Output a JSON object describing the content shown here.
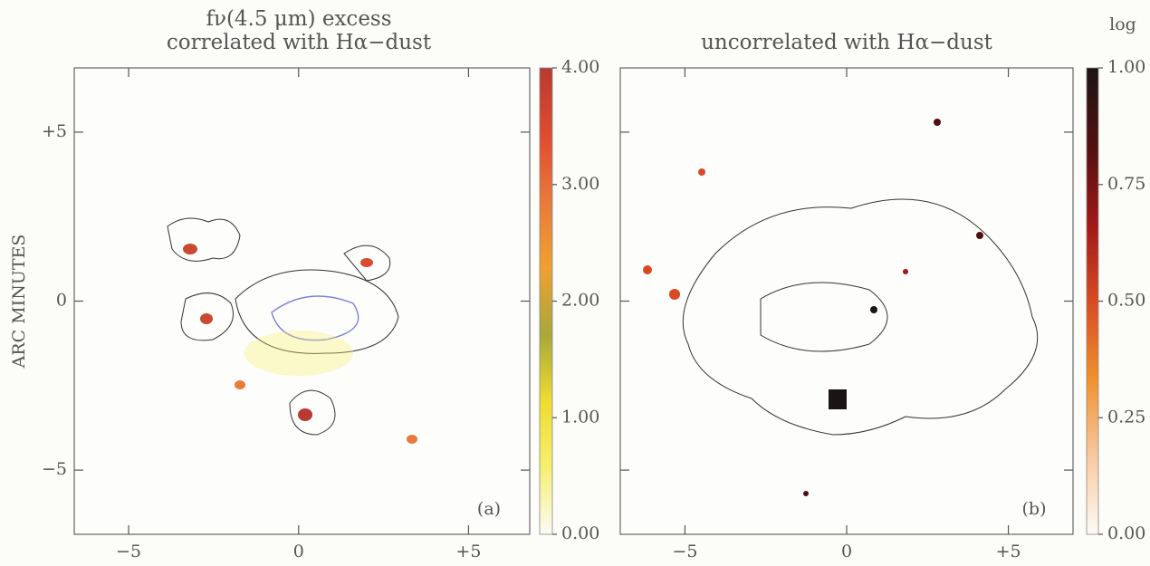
{
  "chart_data": [
    {
      "type": "image",
      "title": [
        "fν(4.5 μm) excess",
        "correlated with Hα−dust"
      ],
      "ylabel": "ARC MINUTES",
      "panel_label": "(a)",
      "xlim": [
        -6.6,
        6.8
      ],
      "ylim": [
        -6.9,
        6.9
      ],
      "xticks": [
        {
          "value": -5,
          "label": "−5"
        },
        0,
        {
          "value": 5,
          "label": "+5"
        }
      ],
      "yticks": [
        {
          "value": -5,
          "label": "−5"
        },
        0,
        {
          "value": 5,
          "label": "+5"
        }
      ],
      "ytick_labels": true,
      "colorbar": {
        "lim": [
          0,
          4
        ],
        "ticks": [
          {
            "value": 0,
            "label": "0.00"
          },
          {
            "value": 1,
            "label": "1.00"
          },
          {
            "value": 2,
            "label": "2.00"
          },
          {
            "value": 3,
            "label": "3.00"
          },
          {
            "value": 4,
            "label": "4.00"
          }
        ],
        "colormap": [
          "#fbfbf6",
          "#f7ef70",
          "#eedc30",
          "#a8a83a",
          "#f0a030",
          "#e87a3a",
          "#e04a30",
          "#b83a30"
        ]
      }
    },
    {
      "type": "image",
      "title": [
        "uncorrelated with Hα−dust"
      ],
      "panel_label": "(b)",
      "xlim": [
        -7.0,
        7.0
      ],
      "ylim": [
        -6.9,
        6.9
      ],
      "xticks": [
        {
          "value": -5,
          "label": "−5"
        },
        0,
        {
          "value": 5,
          "label": "+5"
        }
      ],
      "yticks": [
        -5,
        0,
        5
      ],
      "ytick_labels": false,
      "colorbar": {
        "label": "log",
        "lim": [
          0,
          1
        ],
        "ticks": [
          {
            "value": 0,
            "label": "0.00"
          },
          {
            "value": 0.25,
            "label": "0.25"
          },
          {
            "value": 0.5,
            "label": "0.50"
          },
          {
            "value": 0.75,
            "label": "0.75"
          },
          {
            "value": 1,
            "label": "1.00"
          }
        ],
        "colormap": [
          "#fdfbf6",
          "#f8c9a0",
          "#f0902e",
          "#d84a22",
          "#a01818",
          "#501010",
          "#1a1414"
        ]
      }
    }
  ]
}
